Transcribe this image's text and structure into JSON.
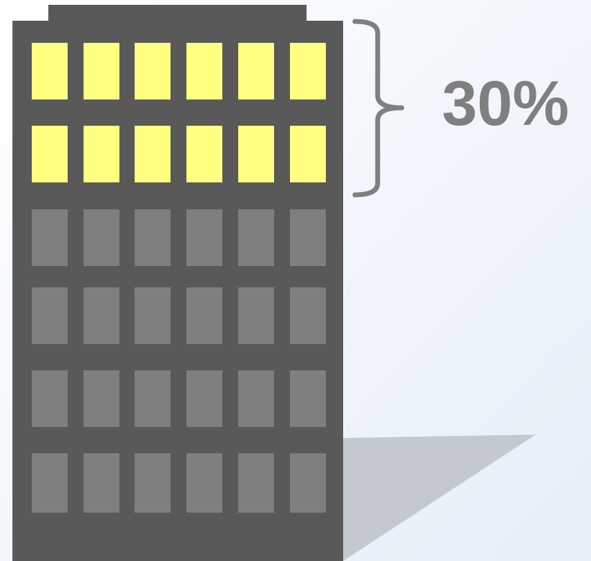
{
  "label": "30%",
  "building": {
    "floors": 6,
    "windows_per_floor": 6,
    "lit_floors": 2,
    "lit_fraction": 0.3
  },
  "colors": {
    "building": "#595959",
    "window_lit": "#ffff80",
    "window_dark": "#7f7f7f",
    "bracket": "#7f7f7f",
    "label": "#7f7f7f",
    "shadow": "#c4c9d0"
  }
}
